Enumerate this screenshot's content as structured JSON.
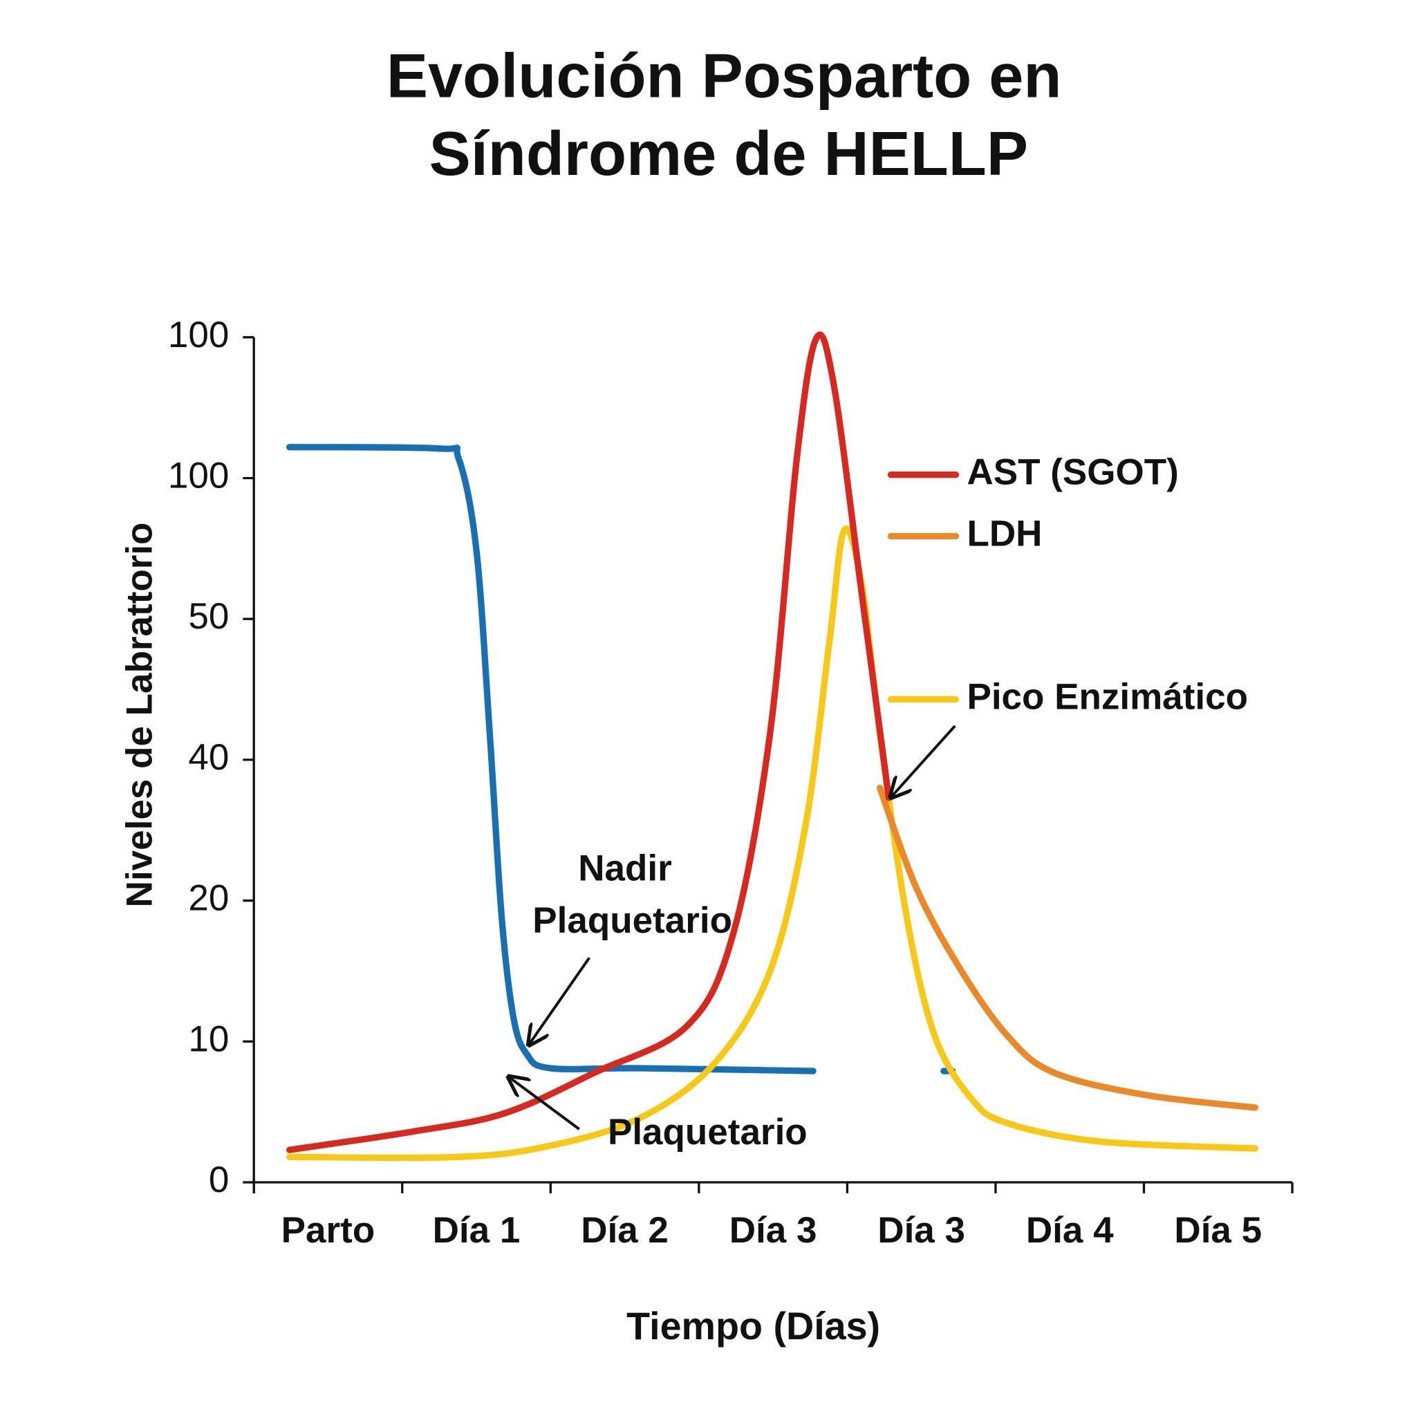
{
  "chart_data": {
    "type": "line",
    "title": [
      "Evolución Posparto en",
      "Síndrome de HELLP"
    ],
    "x_label": "Tiempo (Días)",
    "y_label": "Niveles de Labrattorio",
    "categories": [
      "Parto",
      "Día 1",
      "Día 2",
      "Día 3",
      "Día 3",
      "Día 4",
      "Día 5"
    ],
    "xlim": [
      0,
      7
    ],
    "ylim": [
      0,
      6
    ],
    "yticks": [
      0,
      {
        "value": 1,
        "label": "10"
      },
      {
        "value": 2,
        "label": "20"
      },
      {
        "value": 3,
        "label": "40"
      },
      {
        "value": 4,
        "label": "50"
      },
      {
        "value": 5,
        "label": "100"
      },
      {
        "value": 6,
        "label": "100"
      }
    ],
    "series": [
      {
        "color": "#1a6fb0",
        "x": [
          0.24,
          1.25,
          1.38,
          1.5,
          1.59,
          1.67,
          1.75,
          1.84,
          2.0,
          2.61,
          3.77,
          null,
          4.65,
          4.71
        ],
        "values": [
          5.22,
          5.21,
          5.14,
          4.49,
          3.19,
          1.89,
          1.17,
          0.91,
          0.81,
          0.81,
          0.79,
          null,
          0.79,
          0.79
        ]
      },
      {
        "name": "AST (SGOT)",
        "color": "#d52a22",
        "x": [
          0.24,
          1.07,
          1.69,
          2.3,
          2.92,
          3.23,
          3.48,
          3.66,
          3.79,
          3.91,
          4.1,
          4.28
        ],
        "values": [
          0.23,
          0.36,
          0.49,
          0.78,
          1.11,
          1.76,
          3.19,
          5.14,
          5.99,
          5.66,
          4.16,
          2.73
        ]
      },
      {
        "name": "LDH",
        "color": "#e88a2c",
        "x": [
          4.22,
          4.47,
          4.77,
          5.08,
          5.39,
          6.01,
          6.75
        ],
        "values": [
          2.8,
          2.08,
          1.5,
          1.04,
          0.78,
          0.62,
          0.53
        ]
      },
      {
        "name": "Pico Enzimático",
        "color": "#f6c81a",
        "x": [
          0.24,
          1.38,
          2.0,
          2.61,
          3.11,
          3.48,
          3.72,
          3.88,
          3.98,
          4.1,
          4.22,
          4.4,
          4.59,
          4.84,
          5.08,
          5.7,
          6.75
        ],
        "values": [
          0.18,
          0.18,
          0.26,
          0.46,
          0.85,
          1.5,
          2.54,
          3.84,
          4.63,
          4.23,
          3.19,
          1.89,
          1.04,
          0.59,
          0.42,
          0.29,
          0.24
        ]
      }
    ],
    "annotations": [
      [
        "Nadir",
        "Plaquetario"
      ],
      [
        "Plaquetario"
      ]
    ]
  }
}
